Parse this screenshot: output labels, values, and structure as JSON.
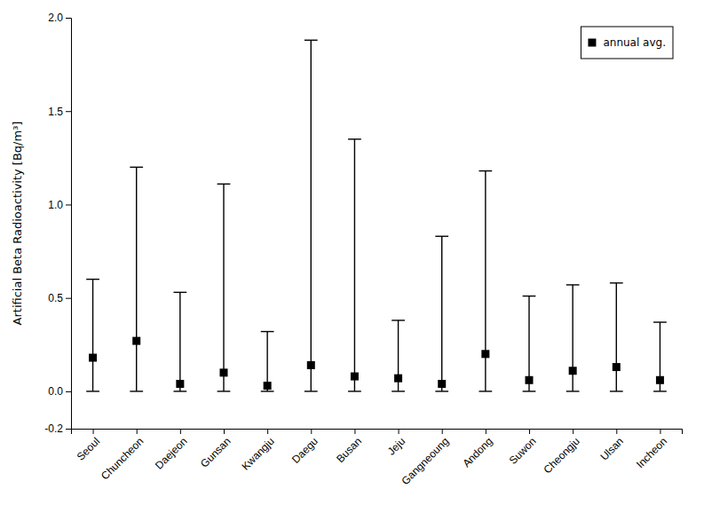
{
  "chart_data": {
    "type": "errorbar",
    "categories": [
      "Seoul",
      "Chuncheon",
      "Daejeon",
      "Gunsan",
      "Kwangju",
      "Daegu",
      "Busan",
      "Jeju",
      "Gangneoung",
      "Andong",
      "Suwon",
      "Cheongju",
      "Ulsan",
      "Incheon"
    ],
    "series": [
      {
        "name": "annual avg.",
        "color": "black",
        "marker": "square",
        "values": [
          0.18,
          0.27,
          0.04,
          0.1,
          0.03,
          0.14,
          0.08,
          0.07,
          0.04,
          0.2,
          0.06,
          0.11,
          0.13,
          0.06
        ],
        "upper": [
          0.6,
          1.2,
          0.53,
          1.11,
          0.32,
          1.88,
          1.35,
          0.38,
          0.83,
          1.18,
          0.51,
          0.57,
          0.58,
          0.37
        ],
        "lower": [
          0.0,
          0.0,
          0.0,
          0.0,
          0.0,
          0.0,
          0.0,
          0.0,
          0.0,
          0.0,
          0.0,
          0.0,
          0.0,
          0.0
        ]
      }
    ],
    "ylabel": "Artificial Beta Radioactivity [Bq/m³]",
    "ylim": [
      -0.2,
      2.0
    ],
    "yticks": [
      -0.2,
      {
        "value": 0,
        "label": "0.0"
      },
      0.5,
      {
        "value": 1,
        "label": "1.0"
      },
      1.5,
      {
        "value": 2,
        "label": "2.0"
      }
    ],
    "legend": "upper right"
  }
}
